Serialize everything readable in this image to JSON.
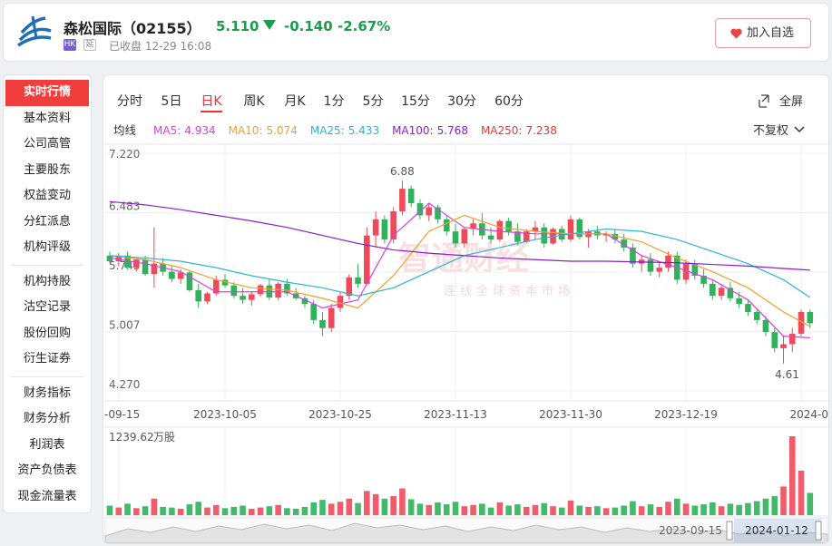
{
  "header": {
    "name": "森松国际（02155）",
    "price": "5.110",
    "change": "-0.140",
    "change_pct": "-2.67%",
    "badge_market": "HK",
    "badge_delay": "延",
    "status": "已收盘 12-29 16:08",
    "watch_button": "加入自选"
  },
  "sidebar": {
    "groups": [
      [
        "实时行情",
        "基本资料",
        "公司高管",
        "主要股东",
        "权益变动",
        "分红派息",
        "机构评级"
      ],
      [
        "机构持股",
        "沽空记录",
        "股份回购",
        "衍生证券"
      ],
      [
        "财务指标",
        "财务分析",
        "利润表",
        "资产负债表",
        "现金流量表"
      ]
    ]
  },
  "tabs": [
    "分时",
    "5日",
    "日K",
    "周K",
    "月K",
    "1分",
    "5分",
    "15分",
    "30分",
    "60分"
  ],
  "toolbar": {
    "fullscreen": "全屏",
    "ma_title": "均线",
    "adjust": "不复权"
  },
  "watermark": {
    "title": "智通财经",
    "subtitle": "连线全球资本市场"
  },
  "chart_data": {
    "type": "candlestick",
    "up_color": "#ee4a5a",
    "down_color": "#2fb35a",
    "ylim": [
      4.27,
      7.22
    ],
    "yticks": [
      {
        "value": 7.22,
        "label": "7.220"
      },
      {
        "value": 6.483,
        "label": "6.483"
      },
      {
        "value": 5.745,
        "label": "5.745"
      },
      {
        "value": 5.007,
        "label": "5.007"
      },
      {
        "value": 4.27,
        "label": "4.270"
      }
    ],
    "xlim": [
      0,
      80
    ],
    "xticks": [
      {
        "value": 1,
        "label": "-09-15"
      },
      {
        "value": 13,
        "label": "2023-10-05"
      },
      {
        "value": 26,
        "label": "2023-10-25"
      },
      {
        "value": 39,
        "label": "2023-11-13"
      },
      {
        "value": 52,
        "label": "2023-11-30"
      },
      {
        "value": 65,
        "label": "2023-12-19"
      },
      {
        "value": 78,
        "label": "2024-0"
      }
    ],
    "grid": true,
    "candles": [
      [
        5.95,
        6.0,
        5.85,
        5.88
      ],
      [
        5.88,
        5.98,
        5.82,
        5.95
      ],
      [
        5.95,
        6.0,
        5.78,
        5.8
      ],
      [
        5.8,
        5.92,
        5.75,
        5.9
      ],
      [
        5.9,
        5.95,
        5.7,
        5.72
      ],
      [
        5.72,
        6.3,
        5.55,
        5.85
      ],
      [
        5.85,
        5.92,
        5.7,
        5.75
      ],
      [
        5.75,
        5.82,
        5.62,
        5.66
      ],
      [
        5.66,
        5.78,
        5.6,
        5.74
      ],
      [
        5.74,
        5.76,
        5.5,
        5.52
      ],
      [
        5.52,
        5.6,
        5.3,
        5.38
      ],
      [
        5.38,
        5.5,
        5.35,
        5.48
      ],
      [
        5.48,
        5.7,
        5.45,
        5.65
      ],
      [
        5.65,
        5.72,
        5.55,
        5.58
      ],
      [
        5.58,
        5.62,
        5.42,
        5.45
      ],
      [
        5.45,
        5.55,
        5.35,
        5.4
      ],
      [
        5.4,
        5.5,
        5.33,
        5.47
      ],
      [
        5.47,
        5.6,
        5.44,
        5.58
      ],
      [
        5.58,
        5.65,
        5.4,
        5.43
      ],
      [
        5.43,
        5.62,
        5.4,
        5.6
      ],
      [
        5.6,
        5.66,
        5.45,
        5.48
      ],
      [
        5.48,
        5.55,
        5.4,
        5.42
      ],
      [
        5.42,
        5.45,
        5.3,
        5.35
      ],
      [
        5.35,
        5.4,
        5.1,
        5.15
      ],
      [
        5.15,
        5.25,
        4.95,
        5.05
      ],
      [
        5.05,
        5.35,
        5.0,
        5.3
      ],
      [
        5.3,
        5.5,
        5.25,
        5.45
      ],
      [
        5.45,
        5.72,
        5.4,
        5.68
      ],
      [
        5.68,
        5.85,
        5.55,
        5.6
      ],
      [
        5.6,
        6.3,
        5.58,
        6.2
      ],
      [
        6.2,
        6.5,
        6.05,
        6.4
      ],
      [
        6.4,
        6.45,
        6.1,
        6.15
      ],
      [
        6.15,
        6.55,
        6.1,
        6.5
      ],
      [
        6.5,
        6.88,
        6.45,
        6.78
      ],
      [
        6.78,
        6.82,
        6.55,
        6.6
      ],
      [
        6.6,
        6.65,
        6.4,
        6.45
      ],
      [
        6.45,
        6.6,
        6.38,
        6.55
      ],
      [
        6.55,
        6.58,
        6.35,
        6.4
      ],
      [
        6.4,
        6.45,
        6.2,
        6.25
      ],
      [
        6.25,
        6.35,
        6.05,
        6.1
      ],
      [
        6.1,
        6.3,
        6.05,
        6.28
      ],
      [
        6.28,
        6.4,
        6.2,
        6.35
      ],
      [
        6.35,
        6.48,
        6.15,
        6.2
      ],
      [
        6.2,
        6.3,
        6.1,
        6.15
      ],
      [
        6.15,
        6.4,
        6.12,
        6.38
      ],
      [
        6.38,
        6.42,
        6.2,
        6.25
      ],
      [
        6.25,
        6.35,
        6.08,
        6.12
      ],
      [
        6.12,
        6.28,
        6.1,
        6.25
      ],
      [
        6.25,
        6.38,
        6.15,
        6.3
      ],
      [
        6.3,
        6.35,
        6.05,
        6.1
      ],
      [
        6.1,
        6.3,
        6.08,
        6.28
      ],
      [
        6.28,
        6.32,
        6.12,
        6.15
      ],
      [
        6.15,
        6.45,
        6.12,
        6.4
      ],
      [
        6.4,
        6.42,
        6.15,
        6.18
      ],
      [
        6.18,
        6.28,
        6.05,
        6.25
      ],
      [
        6.25,
        6.32,
        6.15,
        6.2
      ],
      [
        6.2,
        6.25,
        6.12,
        6.22
      ],
      [
        6.22,
        6.28,
        6.1,
        6.15
      ],
      [
        6.15,
        6.22,
        6.0,
        6.05
      ],
      [
        6.05,
        6.1,
        5.8,
        5.85
      ],
      [
        5.85,
        5.95,
        5.75,
        5.9
      ],
      [
        5.9,
        5.98,
        5.7,
        5.75
      ],
      [
        5.75,
        5.88,
        5.68,
        5.8
      ],
      [
        5.8,
        6.0,
        5.75,
        5.95
      ],
      [
        5.95,
        6.0,
        5.6,
        5.65
      ],
      [
        5.65,
        5.9,
        5.6,
        5.85
      ],
      [
        5.85,
        5.9,
        5.65,
        5.7
      ],
      [
        5.7,
        5.78,
        5.55,
        5.6
      ],
      [
        5.6,
        5.65,
        5.4,
        5.45
      ],
      [
        5.45,
        5.6,
        5.4,
        5.55
      ],
      [
        5.55,
        5.62,
        5.38,
        5.42
      ],
      [
        5.42,
        5.5,
        5.3,
        5.35
      ],
      [
        5.35,
        5.4,
        5.2,
        5.25
      ],
      [
        5.25,
        5.3,
        5.1,
        5.15
      ],
      [
        5.15,
        5.2,
        4.95,
        5.0
      ],
      [
        5.0,
        5.05,
        4.75,
        4.8
      ],
      [
        4.8,
        4.95,
        4.61,
        4.85
      ],
      [
        4.85,
        5.05,
        4.75,
        4.98
      ],
      [
        4.98,
        5.28,
        4.95,
        5.25
      ],
      [
        5.25,
        5.28,
        5.05,
        5.11
      ]
    ],
    "ma_x": [
      0,
      4,
      8,
      12,
      16,
      20,
      24,
      28,
      32,
      36,
      40,
      44,
      48,
      52,
      56,
      60,
      64,
      68,
      72,
      76,
      79
    ],
    "ma_series": [
      {
        "name": "MA5:",
        "last": 4.934,
        "color": "#e03ce0",
        "values": [
          5.92,
          5.85,
          5.75,
          5.5,
          5.5,
          5.5,
          5.3,
          5.4,
          6.2,
          6.6,
          6.3,
          6.25,
          6.22,
          6.22,
          6.22,
          5.95,
          5.8,
          5.65,
          5.4,
          4.95,
          4.93
        ]
      },
      {
        "name": "MA10:",
        "last": 5.074,
        "color": "#f0a030",
        "values": [
          5.95,
          5.9,
          5.8,
          5.65,
          5.55,
          5.52,
          5.42,
          5.3,
          5.7,
          6.25,
          6.45,
          6.3,
          6.25,
          6.22,
          6.22,
          6.12,
          5.92,
          5.75,
          5.55,
          5.25,
          5.07
        ]
      },
      {
        "name": "MA25:",
        "last": 5.433,
        "color": "#2cb6d8",
        "values": [
          5.95,
          5.92,
          5.88,
          5.8,
          5.7,
          5.62,
          5.55,
          5.45,
          5.55,
          5.75,
          5.95,
          6.05,
          6.15,
          6.22,
          6.28,
          6.25,
          6.15,
          6.0,
          5.85,
          5.65,
          5.43
        ]
      },
      {
        "name": "MA100:",
        "last": 5.768,
        "color": "#8a1fd0",
        "values": [
          6.62,
          6.58,
          6.52,
          6.45,
          6.38,
          6.3,
          6.2,
          6.1,
          6.02,
          5.98,
          5.95,
          5.92,
          5.9,
          5.88,
          5.88,
          5.87,
          5.86,
          5.84,
          5.82,
          5.79,
          5.77
        ]
      },
      {
        "name": "MA250:",
        "last": 7.238,
        "color": "#e53935",
        "values": []
      }
    ],
    "volume_unit": "万股",
    "volume_ylim": [
      0,
      1239.62
    ],
    "volumes": [
      150,
      120,
      180,
      110,
      140,
      260,
      130,
      120,
      100,
      170,
      210,
      120,
      160,
      110,
      130,
      150,
      100,
      120,
      140,
      160,
      110,
      100,
      130,
      200,
      240,
      180,
      210,
      260,
      190,
      380,
      330,
      260,
      300,
      420,
      250,
      180,
      160,
      200,
      170,
      210,
      140,
      160,
      180,
      120,
      200,
      150,
      170,
      130,
      160,
      190,
      140,
      120,
      230,
      150,
      130,
      140,
      110,
      120,
      150,
      220,
      140,
      170,
      130,
      210,
      260,
      180,
      150,
      170,
      200,
      140,
      180,
      160,
      190,
      220,
      260,
      300,
      450,
      1239.62,
      700,
      350
    ]
  },
  "navigator": {
    "start": "2023-09-15",
    "end": "2024-01-12"
  }
}
